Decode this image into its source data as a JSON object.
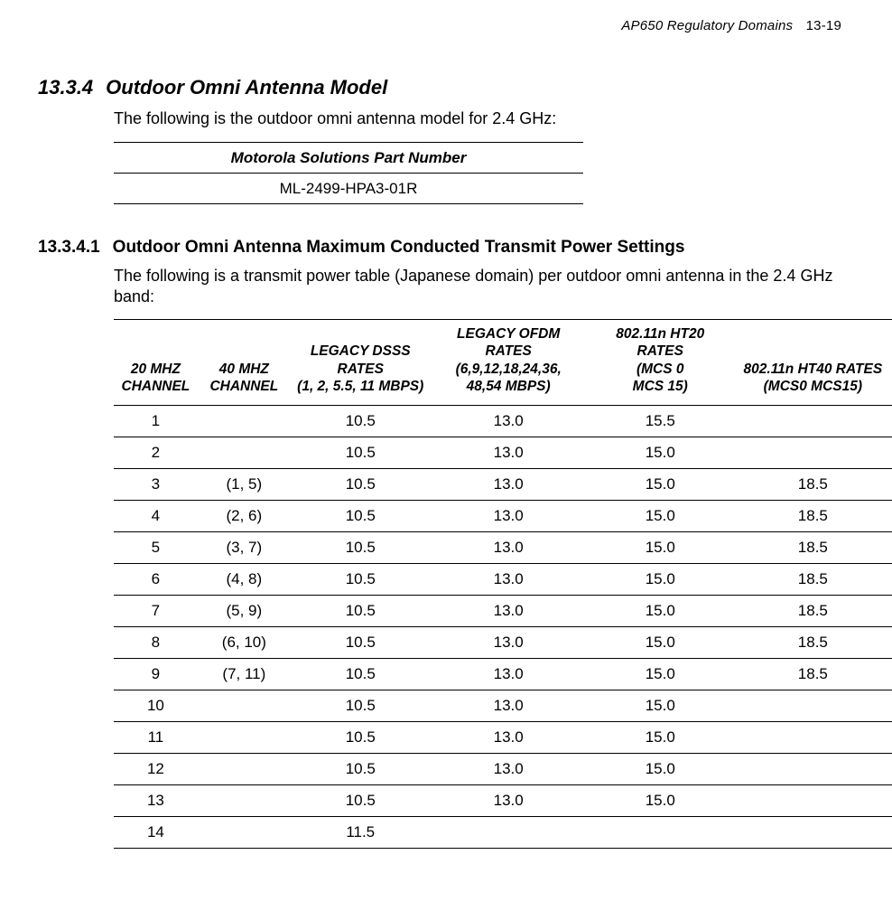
{
  "header": {
    "running_title": "AP650 Regulatory Domains",
    "page_label": "13-19"
  },
  "section": {
    "number": "13.3.4",
    "title": "Outdoor Omni Antenna Model",
    "intro": "The following is the outdoor omni antenna model for 2.4 GHz:"
  },
  "part_table": {
    "header": "Motorola Solutions Part Number",
    "value": "ML-2499-HPA3-01R"
  },
  "subsection": {
    "number": "13.3.4.1",
    "title": "Outdoor Omni Antenna Maximum Conducted Transmit Power Settings",
    "intro": "The following is a transmit power table (Japanese domain) per outdoor omni antenna in the 2.4 GHz band:"
  },
  "power_table": {
    "headers": {
      "ch20": "20 MHZ CHANNEL",
      "ch40": "40 MHZ CHANNEL",
      "dsss_line1": "LEGACY DSSS RATES",
      "dsss_line2": "(1, 2, 5.5, 11 MBPS)",
      "ofdm_line1": "LEGACY OFDM RATES",
      "ofdm_line2": "(6,9,12,18,24,36,",
      "ofdm_line3": "48,54 MBPS)",
      "ht20_line1": "802.11n HT20 RATES",
      "ht20_line2": "(MCS 0",
      "ht20_line3": "MCS 15)",
      "ht40_line1": "802.11n HT40 RATES",
      "ht40_line2": "(MCS0  MCS15)"
    },
    "rows": [
      {
        "ch20": "1",
        "ch40": "",
        "dsss": "10.5",
        "ofdm": "13.0",
        "ht20": "15.5",
        "ht40": ""
      },
      {
        "ch20": "2",
        "ch40": "",
        "dsss": "10.5",
        "ofdm": "13.0",
        "ht20": "15.0",
        "ht40": ""
      },
      {
        "ch20": "3",
        "ch40": "(1, 5)",
        "dsss": "10.5",
        "ofdm": "13.0",
        "ht20": "15.0",
        "ht40": "18.5"
      },
      {
        "ch20": "4",
        "ch40": "(2, 6)",
        "dsss": "10.5",
        "ofdm": "13.0",
        "ht20": "15.0",
        "ht40": "18.5"
      },
      {
        "ch20": "5",
        "ch40": "(3, 7)",
        "dsss": "10.5",
        "ofdm": "13.0",
        "ht20": "15.0",
        "ht40": "18.5"
      },
      {
        "ch20": "6",
        "ch40": "(4, 8)",
        "dsss": "10.5",
        "ofdm": "13.0",
        "ht20": "15.0",
        "ht40": "18.5"
      },
      {
        "ch20": "7",
        "ch40": "(5, 9)",
        "dsss": "10.5",
        "ofdm": "13.0",
        "ht20": "15.0",
        "ht40": "18.5"
      },
      {
        "ch20": "8",
        "ch40": "(6, 10)",
        "dsss": "10.5",
        "ofdm": "13.0",
        "ht20": "15.0",
        "ht40": "18.5"
      },
      {
        "ch20": "9",
        "ch40": "(7, 11)",
        "dsss": "10.5",
        "ofdm": "13.0",
        "ht20": "15.0",
        "ht40": "18.5"
      },
      {
        "ch20": "10",
        "ch40": "",
        "dsss": "10.5",
        "ofdm": "13.0",
        "ht20": "15.0",
        "ht40": ""
      },
      {
        "ch20": "11",
        "ch40": "",
        "dsss": "10.5",
        "ofdm": "13.0",
        "ht20": "15.0",
        "ht40": ""
      },
      {
        "ch20": "12",
        "ch40": "",
        "dsss": "10.5",
        "ofdm": "13.0",
        "ht20": "15.0",
        "ht40": ""
      },
      {
        "ch20": "13",
        "ch40": "",
        "dsss": "10.5",
        "ofdm": "13.0",
        "ht20": "15.0",
        "ht40": ""
      },
      {
        "ch20": "14",
        "ch40": "",
        "dsss": "11.5",
        "ofdm": "",
        "ht20": "",
        "ht40": ""
      }
    ]
  }
}
